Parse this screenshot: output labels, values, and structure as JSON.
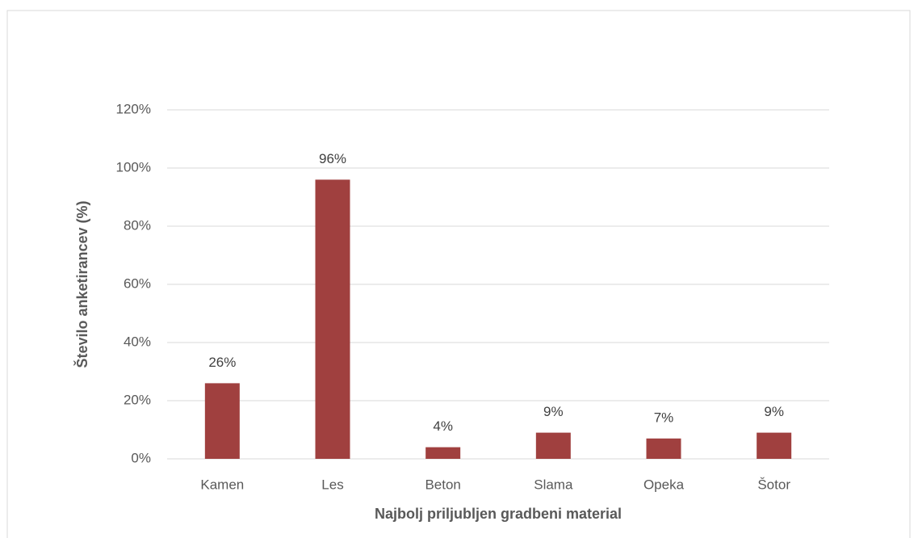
{
  "chart_data": {
    "type": "bar",
    "x_label": "Najbolj priljubljen gradbeni material",
    "y_label": "Število anketirancev (%)",
    "categories": [
      "Kamen",
      "Les",
      "Beton",
      "Slama",
      "Opeka",
      "Šotor"
    ],
    "values": [
      26,
      96,
      4,
      9,
      7,
      9
    ],
    "value_labels": [
      "26%",
      "96%",
      "4%",
      "9%",
      "7%",
      "9%"
    ],
    "color": "#a0403f",
    "ylim": [
      0,
      120
    ],
    "yticks": [
      {
        "value": 0,
        "label": "0%"
      },
      {
        "value": 20,
        "label": "20%"
      },
      {
        "value": 40,
        "label": "40%"
      },
      {
        "value": 60,
        "label": "60%"
      },
      {
        "value": 80,
        "label": "80%"
      },
      {
        "value": 100,
        "label": "100%"
      },
      {
        "value": 120,
        "label": "120%"
      }
    ],
    "grid": true
  }
}
